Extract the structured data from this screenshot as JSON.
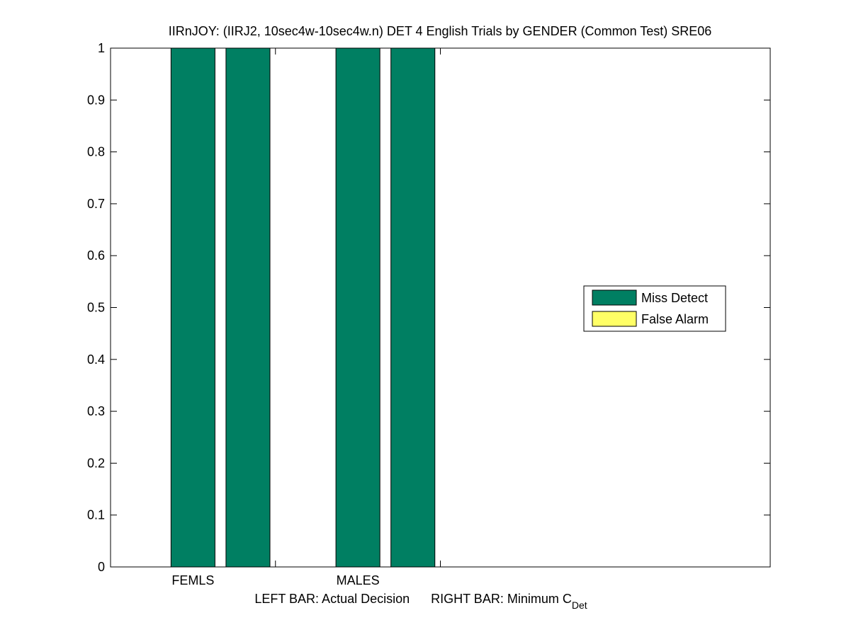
{
  "chart_data": {
    "type": "bar",
    "stacked": true,
    "title": "IIRnJOY: (IIRJ2, 10sec4w-10sec4w.n) DET 4 English Trials by GENDER (Common Test) SRE06",
    "xlabel": {
      "left": "LEFT BAR: Actual Decision",
      "right_prefix": "RIGHT BAR: Minimum C",
      "right_subscript": "Det"
    },
    "ylabel": "",
    "ylim": [
      0,
      1
    ],
    "yticks": [
      "0",
      "0.1",
      "0.2",
      "0.3",
      "0.4",
      "0.5",
      "0.6",
      "0.7",
      "0.8",
      "0.9",
      "1"
    ],
    "categories": [
      "FEMLS",
      "MALES"
    ],
    "bar_roles": [
      "Actual Decision",
      "Minimum CDet"
    ],
    "series": [
      {
        "name": "Miss Detect",
        "color": "#007f62",
        "values": [
          [
            1,
            1
          ],
          [
            1,
            1
          ]
        ]
      },
      {
        "name": "False Alarm",
        "color": "#ffff66",
        "values": [
          [
            0,
            0
          ],
          [
            0,
            0
          ]
        ]
      }
    ],
    "legend": {
      "placement": "right"
    },
    "grid": false
  }
}
